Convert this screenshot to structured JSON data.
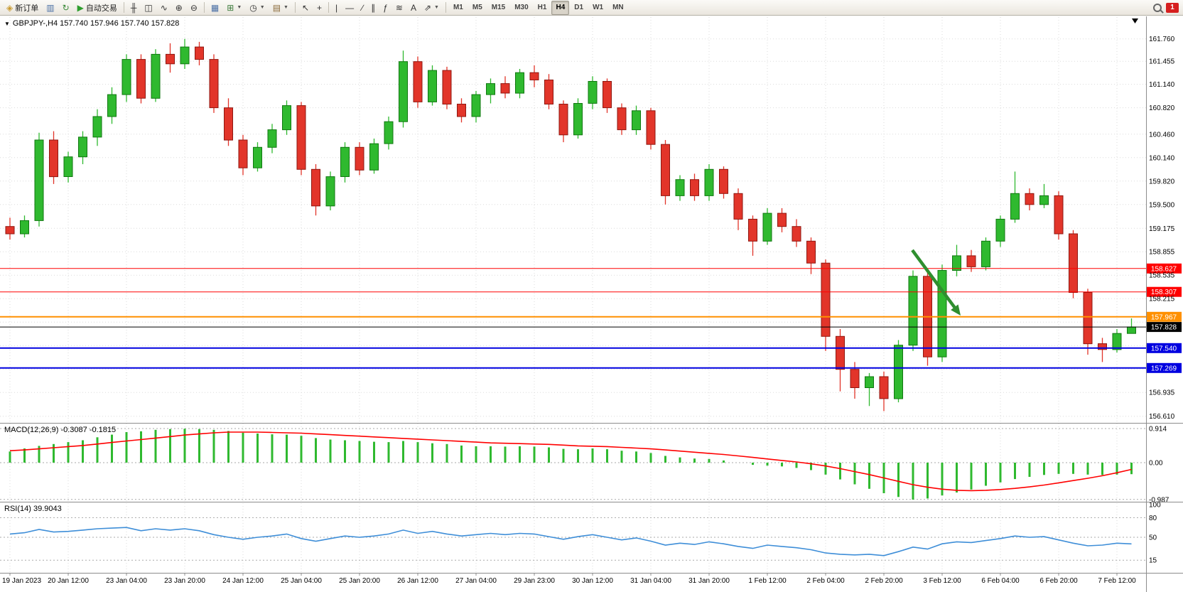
{
  "app": {
    "notification_count": "1"
  },
  "toolbar": {
    "new_order_label": "新订单",
    "auto_trading_label": "自动交易",
    "items": [
      {
        "type": "button",
        "name": "new-order-button",
        "icon": "new-order-icon",
        "glyph": "◈",
        "glyph_color": "#c99a2e",
        "label_key": "new_order_label"
      },
      {
        "type": "iconbtn",
        "name": "charts-window-button",
        "icon": "chart-window-icon",
        "glyph": "▥",
        "glyph_color": "#4a6fa5"
      },
      {
        "type": "iconbtn",
        "name": "refresh-button",
        "icon": "refresh-icon",
        "glyph": "↻",
        "glyph_color": "#3a8a3a"
      },
      {
        "type": "button",
        "name": "auto-trading-button",
        "icon": "play-icon",
        "glyph": "▶",
        "glyph_color": "#2e9e2e",
        "label_key": "auto_trading_label"
      },
      {
        "type": "sep"
      },
      {
        "type": "iconbtn",
        "name": "bar-chart-type-button",
        "icon": "ohlc-bars-icon",
        "glyph": "╫",
        "glyph_color": "#333333"
      },
      {
        "type": "iconbtn",
        "name": "candlestick-type-button",
        "icon": "candlestick-icon",
        "glyph": "◫",
        "glyph_color": "#333333"
      },
      {
        "type": "iconbtn",
        "name": "line-chart-type-button",
        "icon": "line-chart-icon",
        "glyph": "∿",
        "glyph_color": "#333333"
      },
      {
        "type": "iconbtn",
        "name": "zoom-in-button",
        "icon": "zoom-in-icon",
        "glyph": "⊕",
        "glyph_color": "#333333"
      },
      {
        "type": "iconbtn",
        "name": "zoom-out-button",
        "icon": "zoom-out-icon",
        "glyph": "⊖",
        "glyph_color": "#333333"
      },
      {
        "type": "sep"
      },
      {
        "type": "iconbtn",
        "name": "tile-windows-button",
        "icon": "tile-windows-icon",
        "glyph": "▦",
        "glyph_color": "#4a6fa5"
      },
      {
        "type": "dropbtn",
        "name": "new-chart-button",
        "icon": "new-chart-icon",
        "glyph": "⊞",
        "glyph_color": "#3a7a3a"
      },
      {
        "type": "dropbtn",
        "name": "periodicity-button",
        "icon": "clock-icon",
        "glyph": "◷",
        "glyph_color": "#333333"
      },
      {
        "type": "dropbtn",
        "name": "templates-button",
        "icon": "template-icon",
        "glyph": "▤",
        "glyph_color": "#8a6a3a"
      },
      {
        "type": "sep"
      },
      {
        "type": "iconbtn",
        "name": "cursor-button",
        "icon": "cursor-icon",
        "glyph": "↖",
        "glyph_color": "#333333"
      },
      {
        "type": "iconbtn",
        "name": "crosshair-button",
        "icon": "crosshair-icon",
        "glyph": "+",
        "glyph_color": "#333333"
      },
      {
        "type": "sep"
      },
      {
        "type": "iconbtn",
        "name": "vertical-line-button",
        "icon": "vertical-line-icon",
        "glyph": "|",
        "glyph_color": "#333333"
      },
      {
        "type": "iconbtn",
        "name": "horizontal-line-button",
        "icon": "horizontal-line-icon",
        "glyph": "—",
        "glyph_color": "#333333"
      },
      {
        "type": "iconbtn",
        "name": "trendline-button",
        "icon": "trendline-icon",
        "glyph": "∕",
        "glyph_color": "#333333"
      },
      {
        "type": "iconbtn",
        "name": "equidistant-channel-button",
        "icon": "channel-icon",
        "glyph": "∥",
        "glyph_color": "#333333"
      },
      {
        "type": "iconbtn",
        "name": "fibonacci-button",
        "icon": "fibonacci-icon",
        "glyph": "ƒ",
        "glyph_color": "#333333"
      },
      {
        "type": "iconbtn",
        "name": "elliott-wave-button",
        "icon": "waves-icon",
        "glyph": "≋",
        "glyph_color": "#333333"
      },
      {
        "type": "iconbtn",
        "name": "text-label-button",
        "icon": "text-icon",
        "glyph": "A",
        "glyph_color": "#333333"
      },
      {
        "type": "dropbtn",
        "name": "arrows-button",
        "icon": "arrow-shapes-icon",
        "glyph": "⇗",
        "glyph_color": "#333333"
      },
      {
        "type": "sep"
      }
    ],
    "timeframes": [
      "M1",
      "M5",
      "M15",
      "M30",
      "H1",
      "H4",
      "D1",
      "W1",
      "MN"
    ],
    "active_timeframe": "H4"
  },
  "chart": {
    "collapse_marker": "▼",
    "title": "GBPJPY-,H4 157.740 157.946 157.740 157.828",
    "symbol": "GBPJPY-",
    "period": "H4"
  },
  "price_axis": {
    "ticks": [
      {
        "t": "161.760",
        "p": 161.76
      },
      {
        "t": "161.455",
        "p": 161.455
      },
      {
        "t": "161.140",
        "p": 161.14
      },
      {
        "t": "160.820",
        "p": 160.82
      },
      {
        "t": "160.460",
        "p": 160.46
      },
      {
        "t": "160.140",
        "p": 160.14
      },
      {
        "t": "159.820",
        "p": 159.82
      },
      {
        "t": "159.500",
        "p": 159.5
      },
      {
        "t": "159.175",
        "p": 159.175
      },
      {
        "t": "158.855",
        "p": 158.855
      },
      {
        "t": "158.535",
        "p": 158.535
      },
      {
        "t": "158.215",
        "p": 158.215
      },
      {
        "t": "156.935",
        "p": 156.935
      },
      {
        "t": "156.610",
        "p": 156.61
      }
    ],
    "hidden_grid_prices": [
      157.895,
      157.575,
      157.255
    ]
  },
  "hlines": [
    {
      "label": "158.627",
      "price": 158.627,
      "color": "#FF0000",
      "width": 1,
      "kind": "resistance"
    },
    {
      "label": "158.307",
      "price": 158.307,
      "color": "#FF0000",
      "width": 1,
      "kind": "resistance"
    },
    {
      "label": "157.967",
      "price": 157.967,
      "color": "#FF9000",
      "width": 2,
      "kind": "pivot"
    },
    {
      "label": "157.828",
      "price": 157.828,
      "color": "#000000",
      "width": 1,
      "kind": "current-price"
    },
    {
      "label": "157.540",
      "price": 157.54,
      "color": "#0000E0",
      "width": 2,
      "kind": "support"
    },
    {
      "label": "157.269",
      "price": 157.269,
      "color": "#0000E0",
      "width": 2,
      "kind": "support"
    }
  ],
  "time_axis": {
    "step": 4,
    "labels": [
      "19 Jan 2023",
      "20 Jan 12:00",
      "23 Jan 04:00",
      "23 Jan 20:00",
      "24 Jan 12:00",
      "25 Jan 04:00",
      "25 Jan 20:00",
      "26 Jan 12:00",
      "27 Jan 04:00",
      "29 Jan 23:00",
      "30 Jan 12:00",
      "31 Jan 04:00",
      "31 Jan 20:00",
      "1 Feb 12:00",
      "2 Feb 04:00",
      "2 Feb 20:00",
      "3 Feb 12:00",
      "6 Feb 04:00",
      "6 Feb 20:00",
      "7 Feb 12:00"
    ]
  },
  "chart_data": {
    "type": "candlestick",
    "symbol": "GBPJPY-",
    "timeframe": "H4",
    "ohlc_current": {
      "open": 157.74,
      "high": 157.946,
      "low": 157.74,
      "close": 157.828
    },
    "price_range_top": 162.0,
    "price_range_bottom": 156.55,
    "candles": [
      [
        159.2,
        159.32,
        159.02,
        159.1
      ],
      [
        159.1,
        159.35,
        159.05,
        159.28
      ],
      [
        159.28,
        160.48,
        159.2,
        160.38
      ],
      [
        160.38,
        160.5,
        159.78,
        159.88
      ],
      [
        159.88,
        160.22,
        159.8,
        160.15
      ],
      [
        160.15,
        160.5,
        160.05,
        160.42
      ],
      [
        160.42,
        160.8,
        160.3,
        160.7
      ],
      [
        160.7,
        161.1,
        160.6,
        161.0
      ],
      [
        161.0,
        161.55,
        160.9,
        161.48
      ],
      [
        161.48,
        161.55,
        160.88,
        160.95
      ],
      [
        160.95,
        161.62,
        160.9,
        161.55
      ],
      [
        161.55,
        161.7,
        161.3,
        161.42
      ],
      [
        161.42,
        161.76,
        161.35,
        161.65
      ],
      [
        161.65,
        161.72,
        161.4,
        161.48
      ],
      [
        161.48,
        161.55,
        160.75,
        160.82
      ],
      [
        160.82,
        160.95,
        160.3,
        160.38
      ],
      [
        160.38,
        160.45,
        159.9,
        160.0
      ],
      [
        160.0,
        160.35,
        159.95,
        160.28
      ],
      [
        160.28,
        160.6,
        160.2,
        160.52
      ],
      [
        160.52,
        160.92,
        160.45,
        160.85
      ],
      [
        160.85,
        160.9,
        159.9,
        159.98
      ],
      [
        159.98,
        160.05,
        159.35,
        159.48
      ],
      [
        159.48,
        159.95,
        159.42,
        159.88
      ],
      [
        159.88,
        160.35,
        159.8,
        160.28
      ],
      [
        160.28,
        160.35,
        159.9,
        159.97
      ],
      [
        159.97,
        160.4,
        159.92,
        160.33
      ],
      [
        160.33,
        160.7,
        160.25,
        160.63
      ],
      [
        160.63,
        161.6,
        160.55,
        161.45
      ],
      [
        161.45,
        161.52,
        160.82,
        160.9
      ],
      [
        160.9,
        161.4,
        160.85,
        161.33
      ],
      [
        161.33,
        161.38,
        160.8,
        160.87
      ],
      [
        160.87,
        160.95,
        160.62,
        160.7
      ],
      [
        160.7,
        161.05,
        160.62,
        161.0
      ],
      [
        161.0,
        161.22,
        160.88,
        161.15
      ],
      [
        161.15,
        161.25,
        160.95,
        161.02
      ],
      [
        161.02,
        161.35,
        160.95,
        161.3
      ],
      [
        161.3,
        161.4,
        161.1,
        161.2
      ],
      [
        161.2,
        161.28,
        160.8,
        160.87
      ],
      [
        160.87,
        160.92,
        160.35,
        160.45
      ],
      [
        160.45,
        160.95,
        160.4,
        160.88
      ],
      [
        160.88,
        161.25,
        160.8,
        161.18
      ],
      [
        161.18,
        161.22,
        160.75,
        160.82
      ],
      [
        160.82,
        160.88,
        160.45,
        160.52
      ],
      [
        160.52,
        160.85,
        160.45,
        160.78
      ],
      [
        160.78,
        160.82,
        160.25,
        160.32
      ],
      [
        160.32,
        160.38,
        159.5,
        159.62
      ],
      [
        159.62,
        159.9,
        159.55,
        159.84
      ],
      [
        159.84,
        159.92,
        159.55,
        159.62
      ],
      [
        159.62,
        160.05,
        159.55,
        159.98
      ],
      [
        159.98,
        160.02,
        159.58,
        159.65
      ],
      [
        159.65,
        159.72,
        159.15,
        159.3
      ],
      [
        159.3,
        159.35,
        158.8,
        159.0
      ],
      [
        159.0,
        159.45,
        158.95,
        159.38
      ],
      [
        159.38,
        159.45,
        159.12,
        159.2
      ],
      [
        159.2,
        159.3,
        158.92,
        159.0
      ],
      [
        159.0,
        159.05,
        158.55,
        158.7
      ],
      [
        158.7,
        158.75,
        157.5,
        157.7
      ],
      [
        157.7,
        157.8,
        156.95,
        157.25
      ],
      [
        157.25,
        157.35,
        156.85,
        157.0
      ],
      [
        157.0,
        157.2,
        156.75,
        157.15
      ],
      [
        157.15,
        157.22,
        156.68,
        156.85
      ],
      [
        156.85,
        157.65,
        156.8,
        157.58
      ],
      [
        157.58,
        158.6,
        157.5,
        158.52
      ],
      [
        158.52,
        158.62,
        157.3,
        157.42
      ],
      [
        157.42,
        158.68,
        157.35,
        158.6
      ],
      [
        158.6,
        158.95,
        158.52,
        158.8
      ],
      [
        158.8,
        158.88,
        158.58,
        158.65
      ],
      [
        158.65,
        159.05,
        158.6,
        159.0
      ],
      [
        159.0,
        159.35,
        158.92,
        159.3
      ],
      [
        159.3,
        159.95,
        159.25,
        159.65
      ],
      [
        159.65,
        159.72,
        159.42,
        159.5
      ],
      [
        159.5,
        159.78,
        159.45,
        159.62
      ],
      [
        159.62,
        159.68,
        159.02,
        159.1
      ],
      [
        159.1,
        159.15,
        158.22,
        158.3
      ],
      [
        158.3,
        158.35,
        157.45,
        157.6
      ],
      [
        157.6,
        157.68,
        157.35,
        157.52
      ],
      [
        157.52,
        157.8,
        157.48,
        157.74
      ],
      [
        157.74,
        157.946,
        157.74,
        157.828
      ]
    ],
    "indicators": {
      "macd": {
        "label": "MACD(12,26,9)",
        "main_value": "-0.3087",
        "signal_value": "-0.1815",
        "axis": [
          "0.914",
          "0.00",
          "-0.987"
        ],
        "axis_values": [
          0.914,
          0.0,
          -0.987
        ],
        "histogram": [
          0.3,
          0.38,
          0.45,
          0.5,
          0.55,
          0.6,
          0.68,
          0.75,
          0.82,
          0.84,
          0.88,
          0.9,
          0.91,
          0.9,
          0.88,
          0.85,
          0.8,
          0.78,
          0.76,
          0.75,
          0.72,
          0.66,
          0.62,
          0.6,
          0.58,
          0.56,
          0.55,
          0.58,
          0.55,
          0.52,
          0.5,
          0.46,
          0.44,
          0.44,
          0.43,
          0.44,
          0.43,
          0.41,
          0.37,
          0.36,
          0.38,
          0.36,
          0.32,
          0.3,
          0.26,
          0.18,
          0.14,
          0.11,
          0.1,
          0.06,
          0.0,
          -0.06,
          -0.08,
          -0.1,
          -0.14,
          -0.2,
          -0.32,
          -0.45,
          -0.58,
          -0.7,
          -0.82,
          -0.92,
          -0.99,
          -0.96,
          -0.88,
          -0.8,
          -0.72,
          -0.62,
          -0.53,
          -0.44,
          -0.38,
          -0.33,
          -0.3,
          -0.3,
          -0.32,
          -0.33,
          -0.32,
          -0.3087
        ],
        "signal_line": [
          0.32,
          0.34,
          0.37,
          0.4,
          0.43,
          0.46,
          0.5,
          0.54,
          0.58,
          0.62,
          0.66,
          0.7,
          0.74,
          0.77,
          0.8,
          0.82,
          0.82,
          0.82,
          0.81,
          0.8,
          0.79,
          0.77,
          0.75,
          0.73,
          0.71,
          0.69,
          0.67,
          0.65,
          0.63,
          0.61,
          0.59,
          0.57,
          0.55,
          0.53,
          0.52,
          0.51,
          0.5,
          0.49,
          0.47,
          0.45,
          0.44,
          0.43,
          0.41,
          0.39,
          0.37,
          0.34,
          0.31,
          0.28,
          0.25,
          0.22,
          0.18,
          0.14,
          0.1,
          0.06,
          0.02,
          -0.03,
          -0.09,
          -0.16,
          -0.24,
          -0.32,
          -0.41,
          -0.5,
          -0.59,
          -0.66,
          -0.71,
          -0.74,
          -0.75,
          -0.74,
          -0.72,
          -0.69,
          -0.65,
          -0.6,
          -0.54,
          -0.48,
          -0.42,
          -0.35,
          -0.27,
          -0.1815
        ]
      },
      "rsi": {
        "label": "RSI(14)",
        "value": "39.9043",
        "axis": [
          "100",
          "80",
          "50",
          "15"
        ],
        "axis_values": [
          100,
          80,
          50,
          15
        ],
        "levels": [
          80,
          50,
          15
        ],
        "series": [
          55,
          57,
          62,
          58,
          59,
          61,
          63,
          64,
          65,
          60,
          63,
          61,
          63,
          60,
          54,
          50,
          47,
          50,
          52,
          55,
          48,
          44,
          48,
          52,
          50,
          52,
          55,
          61,
          56,
          59,
          55,
          52,
          54,
          56,
          54,
          56,
          55,
          51,
          47,
          51,
          54,
          50,
          46,
          49,
          44,
          38,
          41,
          39,
          43,
          40,
          36,
          33,
          38,
          36,
          34,
          31,
          26,
          24,
          23,
          24,
          22,
          28,
          35,
          32,
          40,
          43,
          42,
          45,
          48,
          52,
          50,
          51,
          46,
          41,
          37,
          38,
          41,
          39.9
        ]
      }
    }
  },
  "annotation": {
    "arrow": {
      "from": [
        1284,
        352
      ],
      "to": [
        1352,
        444
      ],
      "color": "#2F8F2F"
    }
  },
  "colors": {
    "up": "#2FB92F",
    "up_border": "#117711",
    "down": "#E2352A",
    "down_border": "#8F1710",
    "macd_hist": "#2FB92F",
    "macd_signal": "#FF0000",
    "rsi_line": "#3E8ED8",
    "grid": "#DBDBDB"
  }
}
